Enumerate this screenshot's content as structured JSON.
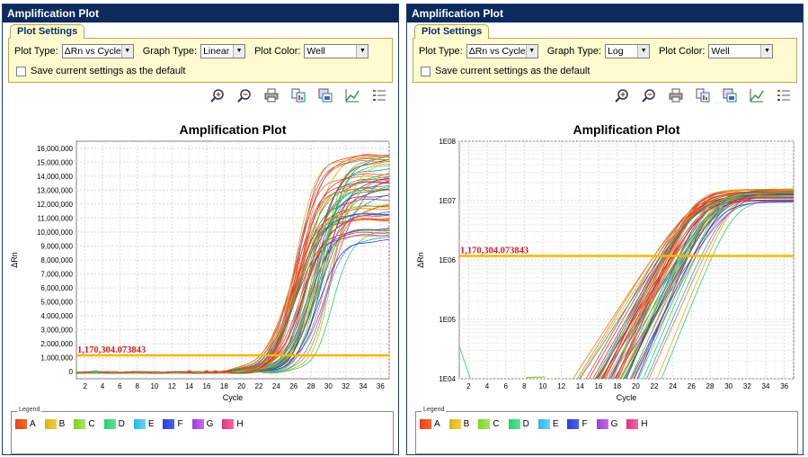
{
  "panels": [
    {
      "title": "Amplification Plot",
      "settings_tab": "Plot Settings",
      "plot_type_label": "Plot Type:",
      "plot_type_value": "ΔRn vs Cycle",
      "graph_type_label": "Graph Type:",
      "graph_type_value": "Linear",
      "plot_color_label": "Plot Color:",
      "plot_color_value": "Well",
      "save_default_label": "Save current settings as the default",
      "legend_title": "Legend"
    },
    {
      "title": "Amplification Plot",
      "settings_tab": "Plot Settings",
      "plot_type_label": "Plot Type:",
      "plot_type_value": "ΔRn vs Cycle",
      "graph_type_label": "Graph Type:",
      "graph_type_value": "Log",
      "plot_color_label": "Plot Color:",
      "plot_color_value": "Well",
      "save_default_label": "Save current settings as the default",
      "legend_title": "Legend"
    }
  ],
  "toolbar_icons": [
    "zoom-in-icon",
    "zoom-out-icon",
    "print-icon",
    "copy-icon",
    "export-icon",
    "chart-icon",
    "legend-icon"
  ],
  "legend": [
    {
      "label": "A",
      "color": "#e8401c"
    },
    {
      "label": "B",
      "color": "#d8b21a"
    },
    {
      "label": "C",
      "color": "#7ed321"
    },
    {
      "label": "D",
      "color": "#2ecc71"
    },
    {
      "label": "E",
      "color": "#29b6e8"
    },
    {
      "label": "F",
      "color": "#2a3fd8"
    },
    {
      "label": "G",
      "color": "#a13cd8"
    },
    {
      "label": "H",
      "color": "#e0337e"
    }
  ],
  "chart_data": [
    {
      "type": "line",
      "title": "Amplification Plot",
      "xlabel": "Cycle",
      "ylabel": "ΔRn",
      "xlim": [
        1,
        37
      ],
      "ylim": [
        -500000,
        16500000
      ],
      "x_ticks": [
        2,
        4,
        6,
        8,
        10,
        12,
        14,
        16,
        18,
        20,
        22,
        24,
        26,
        28,
        30,
        32,
        34,
        36
      ],
      "y_ticks": [
        0,
        1000000,
        2000000,
        3000000,
        4000000,
        5000000,
        6000000,
        7000000,
        8000000,
        9000000,
        10000000,
        11000000,
        12000000,
        13000000,
        14000000,
        15000000,
        16000000
      ],
      "y_tick_labels": [
        "0",
        "1,000,000",
        "2,000,000",
        "3,000,000",
        "4,000,000",
        "5,000,000",
        "6,000,000",
        "7,000,000",
        "8,000,000",
        "9,000,000",
        "10,000,000",
        "11,000,000",
        "12,000,000",
        "13,000,000",
        "14,000,000",
        "15,000,000",
        "16,000,000"
      ],
      "scale": "linear",
      "grid": true,
      "threshold": {
        "value": 1170304.073843,
        "label": "1,170,304.073843",
        "color": "#f5b800"
      },
      "curve_midpoint_range_cycles": [
        25.5,
        31
      ],
      "curve_plateau_range": [
        9300000,
        15900000
      ]
    },
    {
      "type": "line",
      "title": "Amplification Plot",
      "xlabel": "Cycle",
      "ylabel": "ΔRn",
      "xlim": [
        1,
        37
      ],
      "ylim": [
        10000,
        100000000
      ],
      "x_ticks": [
        2,
        4,
        6,
        8,
        10,
        12,
        14,
        16,
        18,
        20,
        22,
        24,
        26,
        28,
        30,
        32,
        34,
        36
      ],
      "y_ticks": [
        10000,
        100000,
        1000000,
        10000000,
        100000000
      ],
      "y_tick_labels": [
        "1E04",
        "1E05",
        "1E06",
        "1E07",
        "1E08"
      ],
      "scale": "log",
      "grid": true,
      "threshold": {
        "value": 1170304.073843,
        "label": "1,170,304.073843",
        "color": "#f5b800"
      },
      "curve_midpoint_range_cycles": [
        25.5,
        31
      ],
      "curve_plateau_range": [
        9300000,
        15900000
      ]
    }
  ]
}
